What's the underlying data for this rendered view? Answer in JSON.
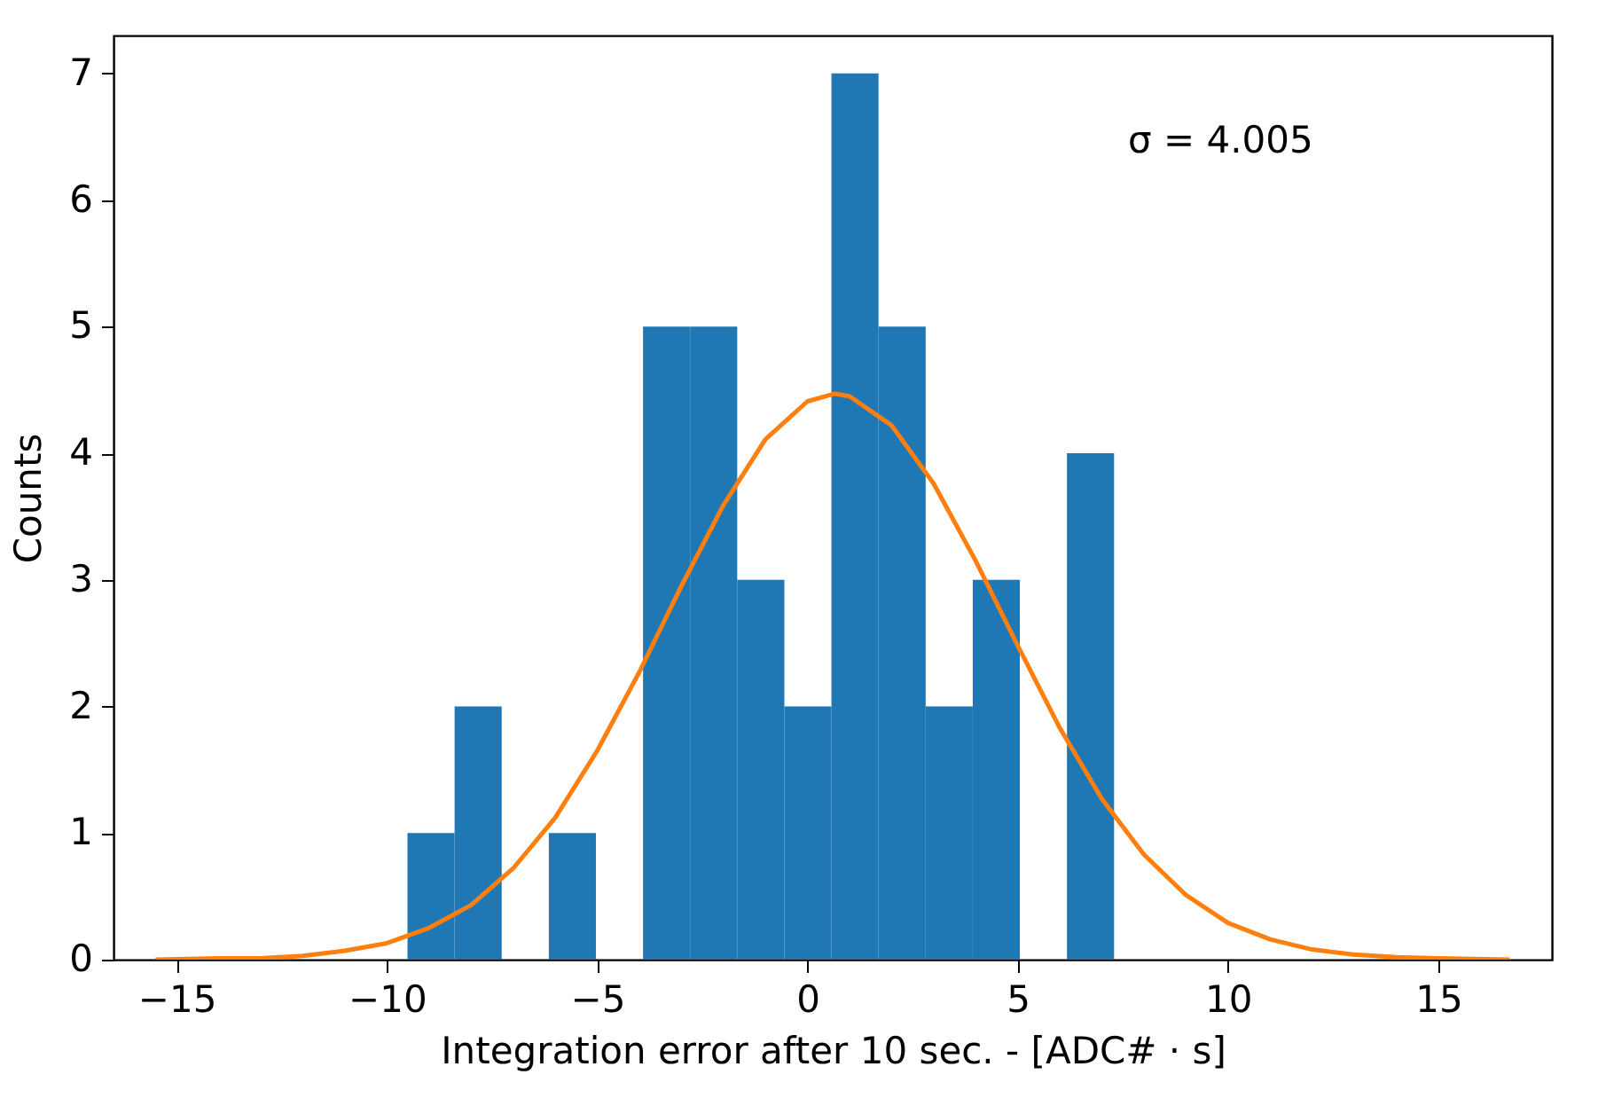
{
  "chart_data": {
    "type": "histogram",
    "xlabel": "Integration error after 10 sec. - [ADC# · s]",
    "ylabel": "Counts",
    "annotations": [
      "σ = 4.005"
    ],
    "bins": [
      -9.51,
      -8.39,
      -7.27,
      -6.15,
      -5.03,
      -3.91,
      -2.79,
      -1.67,
      -0.55,
      0.57,
      1.69,
      2.81,
      3.93,
      5.05,
      6.17,
      7.29
    ],
    "values": [
      1,
      2,
      0,
      1,
      0,
      5,
      5,
      3,
      2,
      7,
      5,
      2,
      3,
      0,
      4
    ],
    "color": "#1f77b4",
    "series": [
      {
        "type": "line",
        "color": "#ff7f0e",
        "x": [
          -15.5,
          -14,
          -13,
          -12,
          -11,
          -10,
          -9,
          -8,
          -7,
          -6,
          -5,
          -4,
          -3,
          -2,
          -1,
          0,
          0.65,
          1,
          2,
          3,
          4,
          5,
          6,
          7,
          8,
          9,
          10,
          11,
          12,
          13,
          14,
          15,
          16.7
        ],
        "values": [
          0,
          0.01,
          0.01,
          0.03,
          0.07,
          0.13,
          0.25,
          0.43,
          0.72,
          1.12,
          1.65,
          2.27,
          2.95,
          3.59,
          4.11,
          4.41,
          4.47,
          4.45,
          4.22,
          3.76,
          3.15,
          2.48,
          1.83,
          1.27,
          0.83,
          0.51,
          0.29,
          0.16,
          0.08,
          0.04,
          0.02,
          0.01,
          0
        ]
      }
    ],
    "xlim": [
      -16.5,
      17.7
    ],
    "ylim": [
      0,
      7.3
    ],
    "xticks": [
      -15,
      -10,
      -5,
      0,
      5,
      10,
      15
    ],
    "yticks": [
      0,
      1,
      2,
      3,
      4,
      5,
      6,
      7
    ],
    "grid": false
  }
}
